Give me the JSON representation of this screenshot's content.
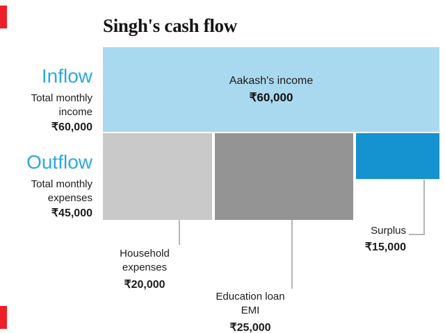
{
  "title": "Singh's cash flow",
  "colors": {
    "red_accent": "#ec2028",
    "cyan_heading": "#2fa8dd",
    "inflow_bar": "#a9d9ee",
    "household_gray": "#c9c9c9",
    "education_gray": "#949494",
    "surplus_blue": "#1592d0",
    "callout_line": "#b5b5b5"
  },
  "inflow": {
    "heading": "Inflow",
    "subtitle": "Total monthly income",
    "amount": "₹60,000",
    "bar": {
      "label": "Aakash's income",
      "amount": "₹60,000"
    }
  },
  "outflow": {
    "heading": "Outflow",
    "subtitle": "Total monthly expenses",
    "amount": "₹45,000"
  },
  "segments": {
    "household": {
      "label": "Household expenses",
      "amount": "₹20,000"
    },
    "education": {
      "label": "Education loan EMI",
      "amount": "₹25,000"
    },
    "surplus": {
      "label": "Surplus",
      "amount": "₹15,000"
    }
  },
  "chart_data": {
    "type": "bar",
    "title": "Singh's cash flow",
    "orientation": "horizontal-stacked",
    "currency": "INR (₹)",
    "rows": [
      {
        "label": "Inflow",
        "description": "Total monthly income",
        "total": 60000,
        "segments": [
          {
            "name": "Aakash's income",
            "value": 60000
          }
        ]
      },
      {
        "label": "Outflow",
        "description": "Total monthly expenses",
        "total": 45000,
        "segments": [
          {
            "name": "Household expenses",
            "value": 20000
          },
          {
            "name": "Education loan EMI",
            "value": 25000
          },
          {
            "name": "Surplus",
            "value": 15000
          }
        ]
      }
    ],
    "note": "Inflow 60,000 = Outflow expenses 45,000 + Surplus 15,000; segment widths proportional to value"
  }
}
